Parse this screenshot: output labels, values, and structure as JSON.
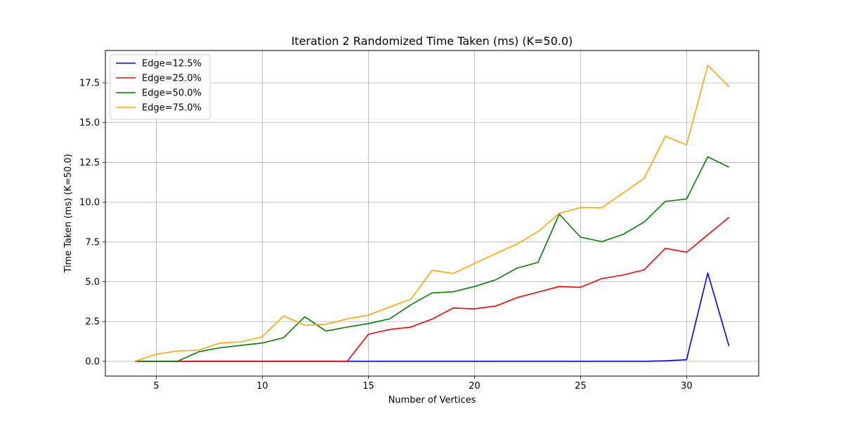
{
  "chart_data": {
    "type": "line",
    "title": "Iteration 2 Randomized Time Taken (ms) (K=50.0)",
    "xlabel": "Number of Vertices",
    "ylabel": "Time Taken (ms) (K=50.0)",
    "xlim": [
      2.6,
      33.4
    ],
    "ylim": [
      -0.93,
      19.53
    ],
    "xticks": [
      5,
      10,
      15,
      20,
      25,
      30
    ],
    "yticks": [
      0.0,
      2.5,
      5.0,
      7.5,
      10.0,
      12.5,
      15.0,
      17.5
    ],
    "ytick_labels": [
      "0.0",
      "2.5",
      "5.0",
      "7.5",
      "10.0",
      "12.5",
      "15.0",
      "17.5"
    ],
    "grid": true,
    "legend_position": "top-left",
    "x": [
      4,
      5,
      6,
      7,
      8,
      9,
      10,
      11,
      12,
      13,
      14,
      15,
      16,
      17,
      18,
      19,
      20,
      21,
      22,
      23,
      24,
      25,
      26,
      27,
      28,
      29,
      30,
      31,
      32
    ],
    "series": [
      {
        "name": "Edge=12.5%",
        "color": "#0000ff",
        "values": [
          0,
          0,
          0,
          0,
          0,
          0,
          0,
          0,
          0,
          0,
          0,
          0,
          0,
          0,
          0,
          0,
          0,
          0,
          0,
          0,
          0,
          0,
          0,
          0,
          0,
          0.03,
          0.1,
          5.55,
          0.95
        ]
      },
      {
        "name": "Edge=25.0%",
        "color": "#ff0000",
        "values": [
          0,
          0,
          0,
          0,
          0,
          0,
          0,
          0,
          0,
          0,
          0,
          1.7,
          2.0,
          2.15,
          2.65,
          3.35,
          3.3,
          3.47,
          4.0,
          4.35,
          4.7,
          4.65,
          5.2,
          5.42,
          5.75,
          7.1,
          6.85,
          7.95,
          9.05
        ]
      },
      {
        "name": "Edge=50.0%",
        "color": "#008000",
        "values": [
          0,
          0,
          0,
          0.6,
          0.85,
          1.0,
          1.15,
          1.48,
          2.8,
          1.9,
          2.15,
          2.37,
          2.67,
          3.55,
          4.3,
          4.37,
          4.7,
          5.12,
          5.85,
          6.22,
          9.25,
          7.8,
          7.52,
          7.97,
          8.75,
          10.05,
          10.2,
          12.85,
          12.2
        ]
      },
      {
        "name": "Edge=75.0%",
        "color": "#ffa500",
        "values": [
          0,
          0.45,
          0.65,
          0.7,
          1.15,
          1.22,
          1.55,
          2.85,
          2.27,
          2.32,
          2.67,
          2.9,
          3.42,
          3.9,
          5.72,
          5.52,
          6.15,
          6.77,
          7.37,
          8.15,
          9.3,
          9.67,
          9.65,
          10.57,
          11.5,
          14.15,
          13.6,
          18.6,
          17.25
        ]
      }
    ]
  }
}
